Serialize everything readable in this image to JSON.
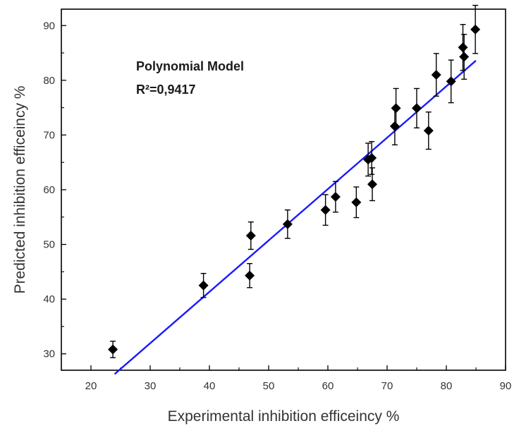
{
  "chart_data": {
    "type": "scatter",
    "title": "",
    "xlabel": "Experimental inhibition efficeincy  %",
    "ylabel": "Predicted  inhibition efficeincy  %",
    "xlim": [
      15,
      90
    ],
    "ylim": [
      27,
      93
    ],
    "xticks": [
      20,
      30,
      40,
      50,
      60,
      70,
      80,
      90
    ],
    "yticks": [
      30,
      40,
      50,
      60,
      70,
      80,
      90
    ],
    "annotations": [
      "Polynomial Model",
      "R²=0,9417"
    ],
    "points": [
      {
        "x": 23.7,
        "y": 30.8,
        "err": 1.5
      },
      {
        "x": 39.0,
        "y": 42.5,
        "err": 2.2
      },
      {
        "x": 46.8,
        "y": 44.3,
        "err": 2.2
      },
      {
        "x": 47.0,
        "y": 51.6,
        "err": 2.5
      },
      {
        "x": 53.2,
        "y": 53.7,
        "err": 2.6
      },
      {
        "x": 59.6,
        "y": 56.3,
        "err": 2.8
      },
      {
        "x": 61.3,
        "y": 58.7,
        "err": 2.8
      },
      {
        "x": 64.8,
        "y": 57.7,
        "err": 2.8
      },
      {
        "x": 66.8,
        "y": 65.5,
        "err": 3.0
      },
      {
        "x": 67.4,
        "y": 65.8,
        "err": 3.0
      },
      {
        "x": 67.5,
        "y": 61.0,
        "err": 3.0
      },
      {
        "x": 71.3,
        "y": 71.6,
        "err": 3.4
      },
      {
        "x": 71.5,
        "y": 74.9,
        "err": 3.6
      },
      {
        "x": 75.0,
        "y": 74.9,
        "err": 3.6
      },
      {
        "x": 77.0,
        "y": 70.8,
        "err": 3.4
      },
      {
        "x": 78.3,
        "y": 81.0,
        "err": 3.9
      },
      {
        "x": 80.8,
        "y": 79.8,
        "err": 3.9
      },
      {
        "x": 82.8,
        "y": 86.0,
        "err": 4.2
      },
      {
        "x": 83.0,
        "y": 84.3,
        "err": 4.1
      },
      {
        "x": 84.9,
        "y": 89.3,
        "err": 4.4
      }
    ],
    "fit_line": {
      "x": [
        24.0,
        85.0
      ],
      "y": [
        26.3,
        83.6
      ]
    },
    "colors": {
      "points": "#000000",
      "fit_line": "#1a1aff",
      "axes": "#000000"
    },
    "grid": false
  }
}
